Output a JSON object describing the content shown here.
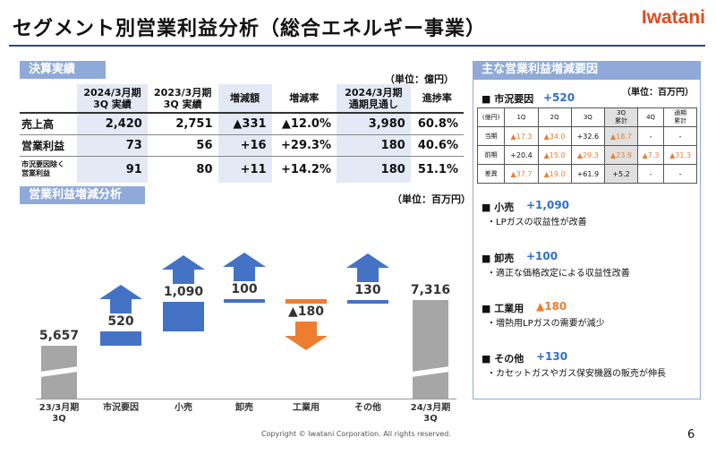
{
  "header": {
    "title": "セグメント別営業利益分析（総合エネルギー事業）",
    "logo": "Iwatani"
  },
  "results": {
    "section_label": "決算実績",
    "unit": "（単位：億円）",
    "columns": [
      "2024/3月期\n3Q 実績",
      "2023/3月期\n3Q 実績",
      "増減額",
      "増減率",
      "2024/3月期\n通期見通し",
      "進捗率"
    ],
    "rows": [
      {
        "label": "売上高",
        "v1": "2,420",
        "v2": "2,751",
        "diff": "▲331",
        "rate": "▲12.0%",
        "fc": "3,980",
        "prog": "60.8%"
      },
      {
        "label": "営業利益",
        "v1": "73",
        "v2": "56",
        "diff": "+16",
        "rate": "+29.3%",
        "fc": "180",
        "prog": "40.6%"
      },
      {
        "label": "市況要因除く\n営業利益",
        "v1": "91",
        "v2": "80",
        "diff": "+11",
        "rate": "+14.2%",
        "fc": "180",
        "prog": "51.1%"
      }
    ]
  },
  "waterfall": {
    "section_label": "営業利益増減分析",
    "unit": "（単位：百万円）",
    "chart_data": {
      "type": "bar",
      "categories": [
        "23/3月期\n3Q",
        "市況要因",
        "小売",
        "卸売",
        "工業用",
        "その他",
        "24/3月期\n3Q"
      ],
      "values": [
        5657,
        520,
        1090,
        100,
        -180,
        130,
        7316
      ],
      "value_labels": [
        "5,657",
        "520",
        "1,090",
        "100",
        "▲180",
        "130",
        "7,316"
      ],
      "kinds": [
        "total",
        "up",
        "up",
        "up",
        "down",
        "up",
        "total"
      ]
    },
    "colors": {
      "total": "#a6a6a6",
      "up": "#4472c4",
      "down": "#ed7d31"
    }
  },
  "factors": {
    "section_label": "主な営業利益増減要因",
    "unit": "（単位：百万円）",
    "market": {
      "heading": "■ 市況要因",
      "value": "+520"
    },
    "table": {
      "columns": [
        "(億円)",
        "1Q",
        "2Q",
        "3Q",
        "3Q\n累計",
        "4Q",
        "通期\n累計"
      ],
      "rows": [
        [
          "当期",
          "▲17.3",
          "▲34.0",
          "+32.6",
          "▲18.7",
          "-",
          "-"
        ],
        [
          "前期",
          "+20.4",
          "▲15.0",
          "▲29.3",
          "▲23.9",
          "▲7.3",
          "▲31.3"
        ],
        [
          "差異",
          "▲37.7",
          "▲19.0",
          "+61.9",
          "+5.2",
          "-",
          "-"
        ]
      ]
    },
    "items": [
      {
        "heading": "■ 小売",
        "value": "+1,090",
        "desc": "・LPガスの収益性が改善"
      },
      {
        "heading": "■ 卸売",
        "value": "+100",
        "desc": "・適正な価格改定による収益性改善"
      },
      {
        "heading": "■ 工業用",
        "value": "▲180",
        "desc": "・増熱用LPガスの需要が減少"
      },
      {
        "heading": "■ その他",
        "value": "+130",
        "desc": "・カセットガスやガス保安機器の販売が伸長"
      }
    ]
  },
  "footer": {
    "copyright": "Copyright © Iwatani Corporation. All rights reserved.",
    "page": "6"
  }
}
